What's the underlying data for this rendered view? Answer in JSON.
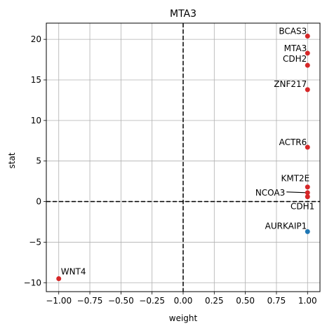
{
  "chart_data": {
    "type": "scatter",
    "title": "MTA3",
    "xlabel": "weight",
    "ylabel": "stat",
    "xlim": [
      -1.1,
      1.1
    ],
    "ylim": [
      -11.1,
      22.0
    ],
    "xticks": [
      -1.0,
      -0.75,
      -0.5,
      -0.25,
      0.0,
      0.25,
      0.5,
      0.75,
      1.0
    ],
    "xtick_labels": [
      "−1.00",
      "−0.75",
      "−0.50",
      "−0.25",
      "0.00",
      "0.25",
      "0.50",
      "0.75",
      "1.00"
    ],
    "yticks": [
      -10,
      -5,
      0,
      5,
      10,
      15,
      20
    ],
    "ytick_labels": [
      "−10",
      "−5",
      "0",
      "5",
      "10",
      "15",
      "20"
    ],
    "grid": true,
    "reference_lines": {
      "x": 0,
      "y": 0,
      "style": "dashed",
      "color": "#000000"
    },
    "colors": {
      "positive": "#d62728",
      "negative": "#1f77b4"
    },
    "points": [
      {
        "name": "BCAS3",
        "x": 1.0,
        "y": 20.4,
        "color": "#d62728"
      },
      {
        "name": "MTA3",
        "x": 1.0,
        "y": 18.3,
        "color": "#d62728"
      },
      {
        "name": "CDH2",
        "x": 1.0,
        "y": 16.8,
        "color": "#d62728"
      },
      {
        "name": "ZNF217",
        "x": 1.0,
        "y": 13.8,
        "color": "#d62728"
      },
      {
        "name": "ACTR6",
        "x": 1.0,
        "y": 6.7,
        "color": "#d62728"
      },
      {
        "name": "KMT2E",
        "x": 1.0,
        "y": 1.8,
        "color": "#d62728"
      },
      {
        "name": "NCOA3",
        "x": 1.0,
        "y": 1.1,
        "color": "#d62728"
      },
      {
        "name": "CDH1",
        "x": 1.0,
        "y": 0.6,
        "color": "#d62728"
      },
      {
        "name": "AURKAIP1",
        "x": 1.0,
        "y": -3.7,
        "color": "#1f77b4"
      },
      {
        "name": "WNT4",
        "x": -1.0,
        "y": -9.5,
        "color": "#d62728"
      }
    ]
  }
}
